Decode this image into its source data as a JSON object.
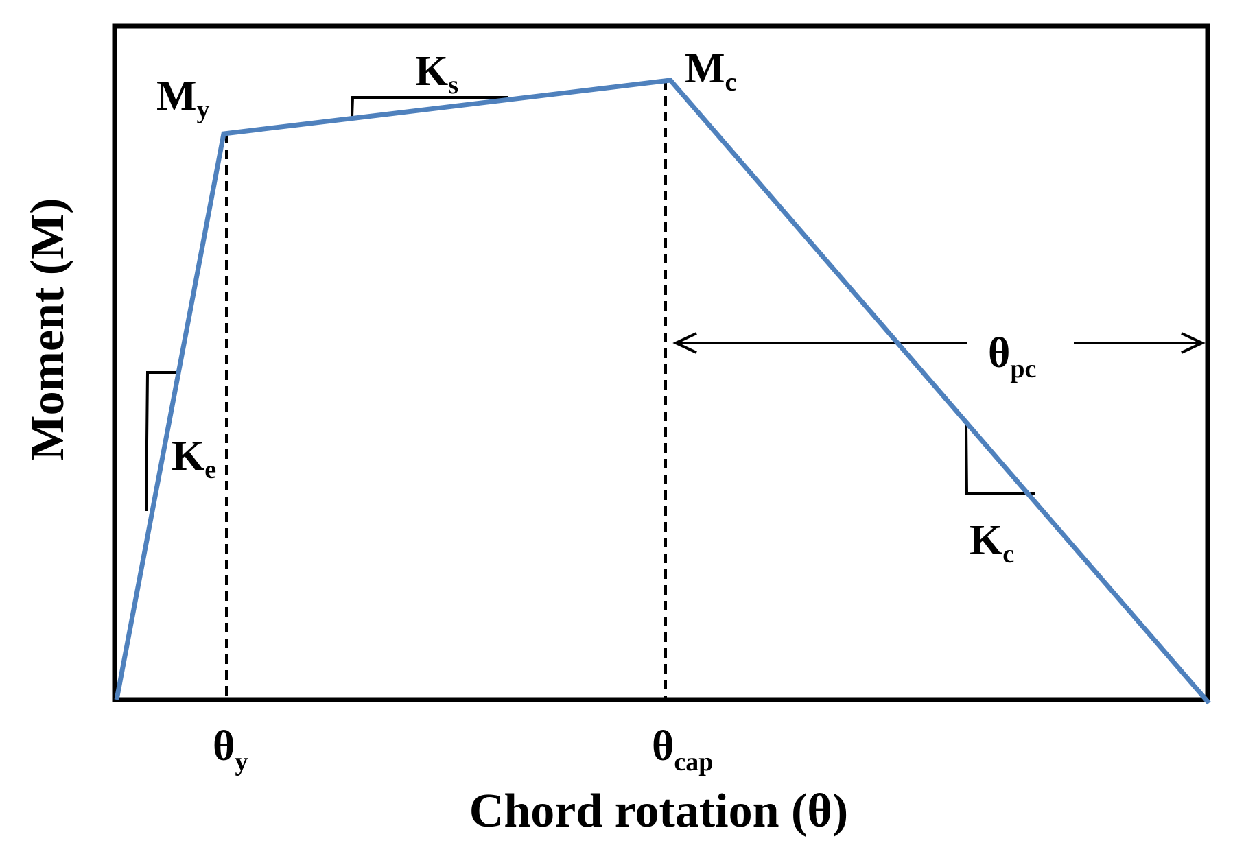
{
  "diagram": {
    "xlabel": "Chord rotation (θ)",
    "ylabel": "Moment (M)",
    "labels": {
      "My": {
        "main": "M",
        "sub": "y"
      },
      "Mc": {
        "main": "M",
        "sub": "c"
      },
      "Ks": {
        "main": "K",
        "sub": "s"
      },
      "Ke": {
        "main": "K",
        "sub": "e"
      },
      "Kc": {
        "main": "K",
        "sub": "c"
      },
      "theta_y": {
        "main": "θ",
        "sub": "y"
      },
      "theta_cap": {
        "main": "θ",
        "sub": "cap"
      },
      "theta_pc": {
        "main": "θ",
        "sub": "pc"
      }
    },
    "colors": {
      "curve": "#4F81BD",
      "frame": "#000000"
    }
  }
}
